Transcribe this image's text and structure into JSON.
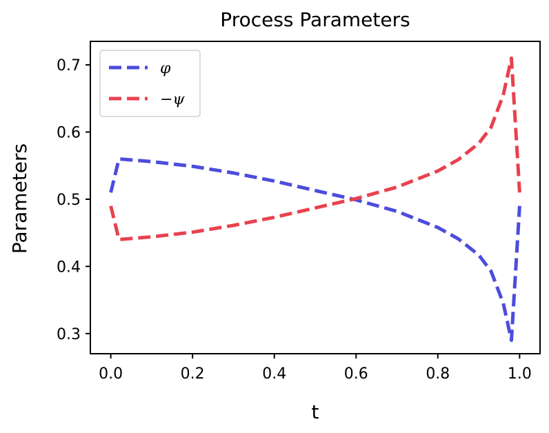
{
  "chart_data": {
    "type": "line",
    "title": "Process Parameters",
    "xlabel": "t",
    "ylabel": "Parameters",
    "xlim": [
      -0.05,
      1.05
    ],
    "ylim": [
      0.27,
      0.735
    ],
    "xticks": [
      0.0,
      0.2,
      0.4,
      0.6,
      0.8,
      1.0
    ],
    "xtick_labels": [
      "0.0",
      "0.2",
      "0.4",
      "0.6",
      "0.8",
      "1.0"
    ],
    "yticks": [
      0.3,
      0.4,
      0.5,
      0.6,
      0.7
    ],
    "ytick_labels": [
      "0.3",
      "0.4",
      "0.5",
      "0.6",
      "0.7"
    ],
    "grid": false,
    "legend_position": "upper left",
    "series": [
      {
        "name": "φ",
        "color": "#4c4cdd",
        "style": "dashed",
        "x": [
          0.0,
          0.02,
          0.1,
          0.2,
          0.3,
          0.4,
          0.5,
          0.6,
          0.7,
          0.8,
          0.85,
          0.9,
          0.93,
          0.96,
          0.98,
          1.0
        ],
        "y": [
          0.51,
          0.56,
          0.556,
          0.549,
          0.539,
          0.527,
          0.513,
          0.499,
          0.482,
          0.458,
          0.441,
          0.417,
          0.393,
          0.345,
          0.29,
          0.49
        ]
      },
      {
        "name": "−ψ",
        "color": "#e8424f",
        "style": "dashed",
        "x": [
          0.0,
          0.02,
          0.1,
          0.2,
          0.3,
          0.4,
          0.5,
          0.6,
          0.7,
          0.8,
          0.85,
          0.9,
          0.93,
          0.96,
          0.98,
          1.0
        ],
        "y": [
          0.49,
          0.44,
          0.444,
          0.451,
          0.461,
          0.473,
          0.487,
          0.501,
          0.518,
          0.542,
          0.559,
          0.583,
          0.607,
          0.655,
          0.71,
          0.51
        ]
      }
    ]
  }
}
